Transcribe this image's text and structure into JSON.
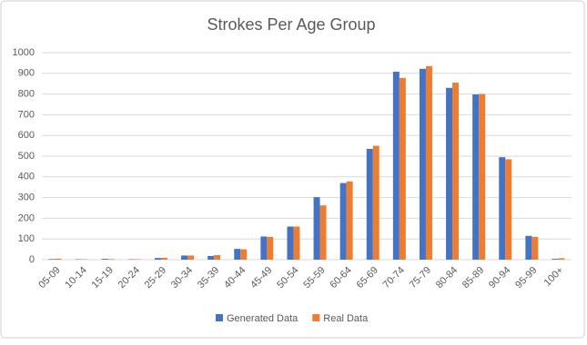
{
  "chart_data": {
    "type": "bar",
    "title": "Strokes Per Age Group",
    "categories": [
      "05-09",
      "10-14",
      "15-19",
      "20-24",
      "25-29",
      "30-34",
      "35-39",
      "40-44",
      "45-49",
      "50-54",
      "55-59",
      "60-64",
      "65-69",
      "70-74",
      "75-79",
      "80-84",
      "85-89",
      "90-94",
      "95-99",
      "100+"
    ],
    "series": [
      {
        "name": "Generated Data",
        "color": "#4472c4",
        "values": [
          3,
          2,
          4,
          2,
          8,
          20,
          18,
          52,
          112,
          160,
          302,
          370,
          535,
          908,
          922,
          830,
          798,
          495,
          115,
          4
        ]
      },
      {
        "name": "Real Data",
        "color": "#ed7d31",
        "values": [
          5,
          2,
          3,
          2,
          9,
          20,
          22,
          50,
          110,
          160,
          262,
          378,
          550,
          878,
          935,
          855,
          800,
          485,
          110,
          7
        ]
      }
    ],
    "ylim": [
      0,
      1000
    ],
    "yticks": [
      0,
      100,
      200,
      300,
      400,
      500,
      600,
      700,
      800,
      900,
      1000
    ],
    "grid": true,
    "legend": "bottom"
  }
}
